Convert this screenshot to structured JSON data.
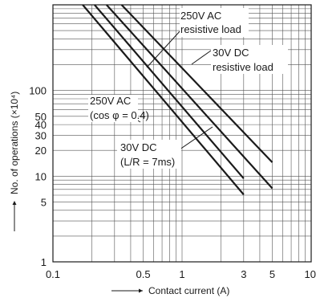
{
  "chart_data": {
    "type": "line",
    "x_scale": "log",
    "y_scale": "log",
    "xlim": [
      0.1,
      10
    ],
    "ylim": [
      1,
      1000
    ],
    "grid": true,
    "xlabel": "Contact current (A)",
    "ylabel": "No. of operations (×10⁴)",
    "x_ticks": [
      {
        "value": 0.1,
        "label": "0.1"
      },
      {
        "value": 0.5,
        "label": "0.5"
      },
      {
        "value": 1,
        "label": "1"
      },
      {
        "value": 3,
        "label": "3"
      },
      {
        "value": 5,
        "label": "5"
      },
      {
        "value": 10,
        "label": "10"
      }
    ],
    "y_ticks": [
      {
        "value": 1,
        "label": "1"
      },
      {
        "value": 5,
        "label": "5"
      },
      {
        "value": 10,
        "label": "10"
      },
      {
        "value": 20,
        "label": "20"
      },
      {
        "value": 30,
        "label": "30"
      },
      {
        "value": 40,
        "label": "40"
      },
      {
        "value": 50,
        "label": "50"
      },
      {
        "value": 100,
        "label": "100"
      }
    ],
    "series": [
      {
        "name": "250V AC (cos φ = 0.4)",
        "x": [
          0.17,
          3
        ],
        "y": [
          1000,
          6.1
        ]
      },
      {
        "name": "30V DC (L/R = 7ms)",
        "x": [
          0.21,
          3
        ],
        "y": [
          1000,
          9.4
        ]
      },
      {
        "name": "250V AC resistive load",
        "x": [
          0.26,
          5
        ],
        "y": [
          1000,
          7.2
        ]
      },
      {
        "name": "30V DC resistive load",
        "x": [
          0.34,
          5
        ],
        "y": [
          1000,
          14.5
        ]
      }
    ],
    "annotations": [
      {
        "lines": [
          "250V AC",
          "resistive load"
        ]
      },
      {
        "lines": [
          "30V DC",
          "resistive load"
        ]
      },
      {
        "lines": [
          "250V AC",
          "(cos φ = 0.4)"
        ]
      },
      {
        "lines": [
          "30V DC",
          "(L/R = 7ms)"
        ]
      }
    ]
  }
}
